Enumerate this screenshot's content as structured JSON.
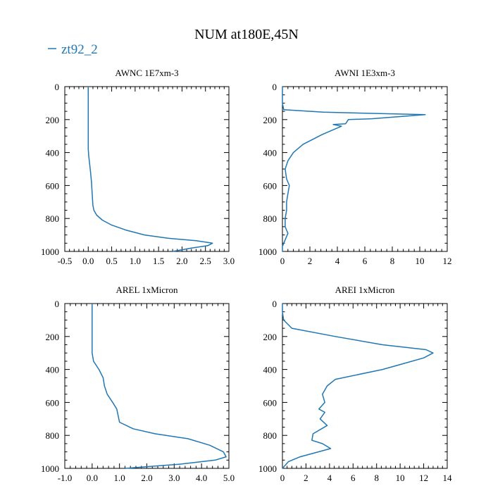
{
  "figure": {
    "title": "NUM at180E,45N"
  },
  "legend": {
    "label": "zt92_2",
    "color": "#1f77b4",
    "placement": "top-left"
  },
  "chart_data": [
    {
      "type": "line",
      "title": "AWNC  1E7xm-3",
      "xlim": [
        -0.5,
        3.0
      ],
      "ylim": [
        0,
        1000
      ],
      "y_inverted": true,
      "xticks": [
        -0.5,
        0.0,
        0.5,
        1.0,
        1.5,
        2.0,
        2.5,
        3.0
      ],
      "xtick_labels": [
        "-0.5",
        "0.0",
        "0.5",
        "1.0",
        "1.5",
        "2.0",
        "2.5",
        "3.0"
      ],
      "yticks": [
        0,
        200,
        400,
        600,
        800,
        1000
      ],
      "ytick_labels": [
        "0",
        "200",
        "400",
        "600",
        "800",
        "1000"
      ],
      "series": [
        {
          "name": "zt92_2",
          "color": "#1f77b4",
          "x": [
            0.0,
            0.0,
            0.0,
            0.0,
            0.0,
            0.01,
            0.03,
            0.05,
            0.07,
            0.08,
            0.09,
            0.1,
            0.12,
            0.18,
            0.3,
            0.5,
            0.8,
            1.2,
            1.7,
            2.3,
            2.65,
            2.55,
            2.2,
            1.8
          ],
          "y": [
            0,
            100,
            200,
            300,
            380,
            420,
            470,
            520,
            580,
            630,
            680,
            720,
            750,
            780,
            810,
            840,
            870,
            900,
            920,
            935,
            950,
            965,
            980,
            1000
          ]
        }
      ]
    },
    {
      "type": "line",
      "title": "AWNI  1E3xm-3",
      "xlim": [
        0,
        12
      ],
      "ylim": [
        0,
        1000
      ],
      "y_inverted": true,
      "xticks": [
        0,
        2,
        4,
        6,
        8,
        10,
        12
      ],
      "xtick_labels": [
        "0",
        "2",
        "4",
        "6",
        "8",
        "10",
        "12"
      ],
      "yticks": [
        0,
        200,
        400,
        600,
        800,
        1000
      ],
      "ytick_labels": [
        "0",
        "200",
        "400",
        "600",
        "800",
        "1000"
      ],
      "series": [
        {
          "name": "zt92_2",
          "color": "#1f77b4",
          "x": [
            0.0,
            0.0,
            0.0,
            0.1,
            3.0,
            10.4,
            6.5,
            4.8,
            4.6,
            3.7,
            4.3,
            2.9,
            1.5,
            0.8,
            0.4,
            0.2,
            0.3,
            0.5,
            0.4,
            0.3,
            0.3,
            0.2,
            0.2,
            0.4,
            0.2,
            0.0,
            0.0
          ],
          "y": [
            0,
            50,
            100,
            140,
            155,
            170,
            195,
            200,
            225,
            230,
            240,
            290,
            350,
            400,
            450,
            500,
            560,
            600,
            650,
            700,
            750,
            800,
            850,
            890,
            930,
            970,
            1000
          ]
        }
      ]
    },
    {
      "type": "line",
      "title": "AREL  1xMicron",
      "xlim": [
        -1.0,
        5.0
      ],
      "ylim": [
        0,
        1000
      ],
      "y_inverted": true,
      "xticks": [
        -1.0,
        0.0,
        1.0,
        2.0,
        3.0,
        4.0,
        5.0
      ],
      "xtick_labels": [
        "-1.0",
        "0.0",
        "1.0",
        "2.0",
        "3.0",
        "4.0",
        "5.0"
      ],
      "yticks": [
        0,
        200,
        400,
        600,
        800,
        1000
      ],
      "ytick_labels": [
        "0",
        "200",
        "400",
        "600",
        "800",
        "1000"
      ],
      "series": [
        {
          "name": "zt92_2",
          "color": "#1f77b4",
          "x": [
            0.0,
            0.0,
            0.0,
            0.0,
            0.05,
            0.25,
            0.4,
            0.45,
            0.55,
            0.75,
            0.9,
            1.0,
            1.5,
            2.3,
            3.5,
            4.3,
            4.8,
            4.9,
            4.5,
            3.2,
            1.2
          ],
          "y": [
            0,
            100,
            200,
            300,
            350,
            400,
            450,
            500,
            550,
            600,
            640,
            720,
            760,
            790,
            820,
            860,
            900,
            930,
            950,
            975,
            1000
          ]
        }
      ]
    },
    {
      "type": "line",
      "title": "AREI  1xMicron",
      "xlim": [
        0,
        14
      ],
      "ylim": [
        0,
        1000
      ],
      "y_inverted": true,
      "xticks": [
        0,
        2,
        4,
        6,
        8,
        10,
        12,
        14
      ],
      "xtick_labels": [
        "0",
        "2",
        "4",
        "6",
        "8",
        "10",
        "12",
        "14"
      ],
      "yticks": [
        0,
        200,
        400,
        600,
        800,
        1000
      ],
      "ytick_labels": [
        "0",
        "200",
        "400",
        "600",
        "800",
        "1000"
      ],
      "series": [
        {
          "name": "zt92_2",
          "color": "#1f77b4",
          "x": [
            0.0,
            0.0,
            0.1,
            0.8,
            4.5,
            8.5,
            12.2,
            12.8,
            12.0,
            10.0,
            8.5,
            4.5,
            3.8,
            3.4,
            3.6,
            3.1,
            3.6,
            3.2,
            3.8,
            2.6,
            2.5,
            3.4,
            4.1,
            1.5,
            0.5,
            0.0
          ],
          "y": [
            0,
            50,
            100,
            150,
            200,
            250,
            280,
            300,
            330,
            370,
            400,
            460,
            500,
            550,
            600,
            640,
            660,
            700,
            740,
            790,
            830,
            850,
            880,
            930,
            960,
            1000
          ]
        }
      ]
    }
  ]
}
